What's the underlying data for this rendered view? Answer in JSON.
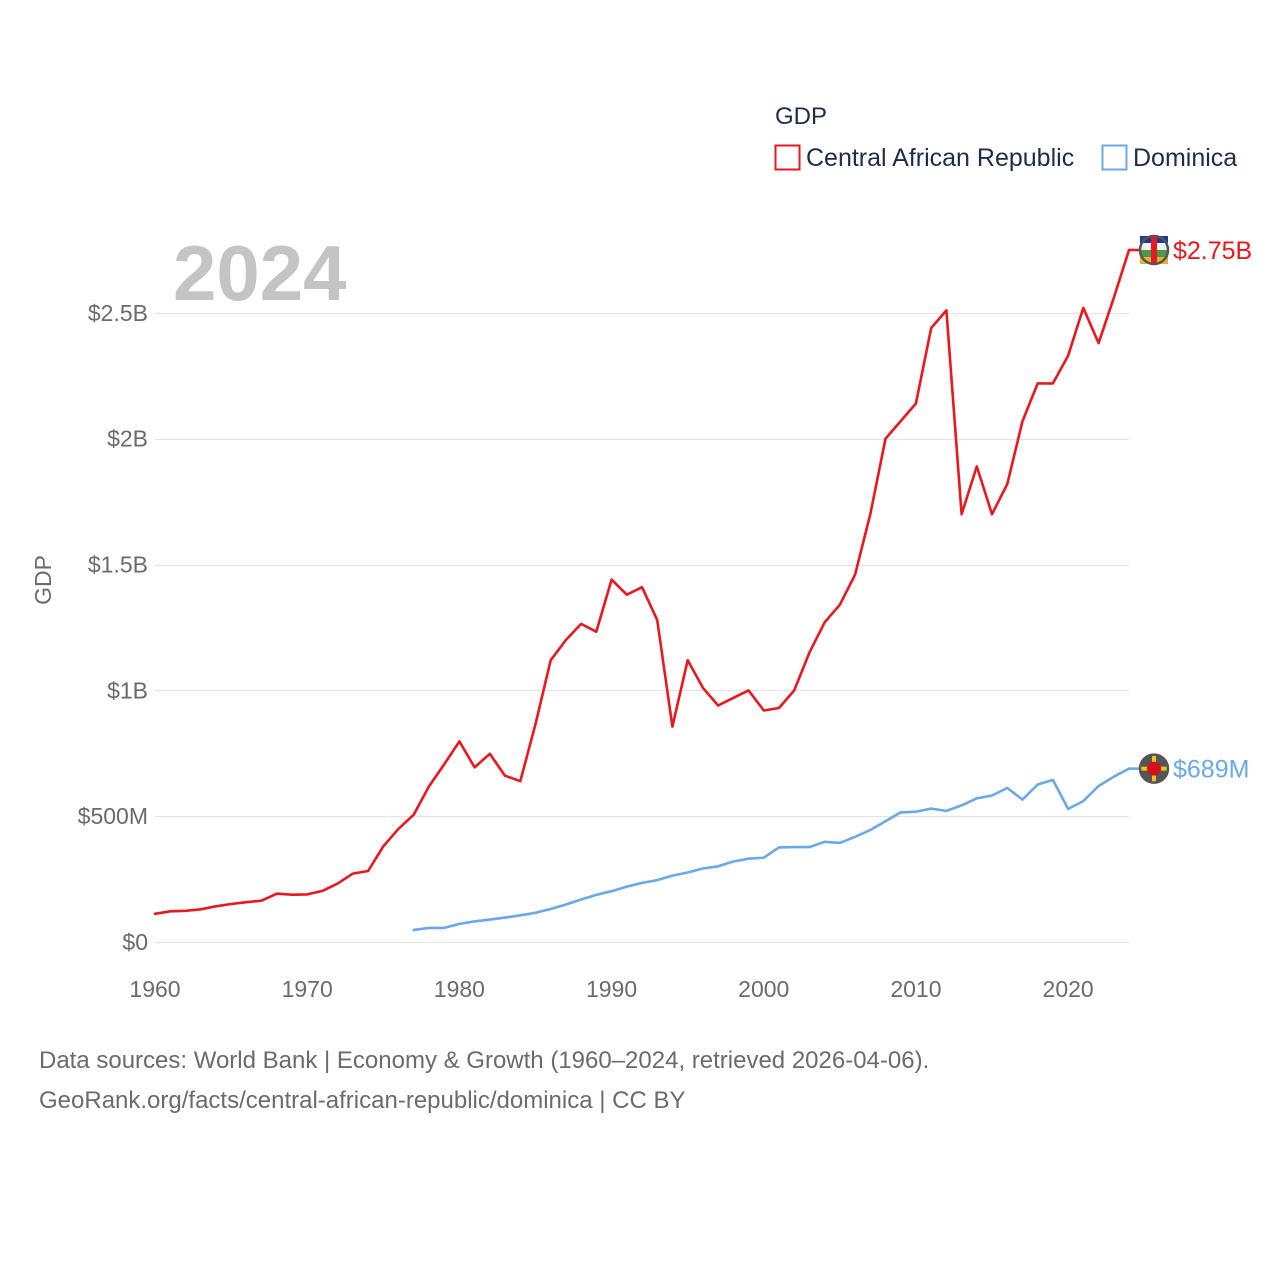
{
  "chart_data": {
    "type": "line",
    "title": "GDP",
    "current_year_label": "2024",
    "ylabel": "GDP",
    "xlabel": "",
    "xlim": [
      1960,
      2024
    ],
    "ylim": [
      0,
      2800000000
    ],
    "x_ticks": [
      {
        "value": 1960,
        "label": "1960"
      },
      {
        "value": 1970,
        "label": "1970"
      },
      {
        "value": 1980,
        "label": "1980"
      },
      {
        "value": 1990,
        "label": "1990"
      },
      {
        "value": 2000,
        "label": "2000"
      },
      {
        "value": 2010,
        "label": "2010"
      },
      {
        "value": 2020,
        "label": "2020"
      }
    ],
    "y_ticks": [
      {
        "value": 0,
        "label": "$0"
      },
      {
        "value": 500000000,
        "label": "$500M"
      },
      {
        "value": 1000000000,
        "label": "$1B"
      },
      {
        "value": 1500000000,
        "label": "$1.5B"
      },
      {
        "value": 2000000000,
        "label": "$2B"
      },
      {
        "value": 2500000000,
        "label": "$2.5B"
      }
    ],
    "grid": true,
    "legend": {
      "title": "GDP",
      "position": "top-right"
    },
    "series": [
      {
        "name": "Central African Republic",
        "color": "#e8191e",
        "flag_icon": "central-african-republic-flag-icon",
        "end_label": "$2.75B",
        "x": [
          1960,
          1961,
          1962,
          1963,
          1964,
          1965,
          1966,
          1967,
          1968,
          1969,
          1970,
          1971,
          1972,
          1973,
          1974,
          1975,
          1976,
          1977,
          1978,
          1979,
          1980,
          1981,
          1982,
          1983,
          1984,
          1985,
          1986,
          1987,
          1988,
          1989,
          1990,
          1991,
          1992,
          1993,
          1994,
          1995,
          1996,
          1997,
          1998,
          1999,
          2000,
          2001,
          2002,
          2003,
          2004,
          2005,
          2006,
          2007,
          2008,
          2009,
          2010,
          2011,
          2012,
          2013,
          2014,
          2015,
          2016,
          2017,
          2018,
          2019,
          2020,
          2021,
          2022,
          2023,
          2024
        ],
        "values": [
          112000000,
          122000000,
          124000000,
          130000000,
          142000000,
          151000000,
          158000000,
          164000000,
          192000000,
          188000000,
          189000000,
          203000000,
          232000000,
          272000000,
          282000000,
          380000000,
          450000000,
          506000000,
          618000000,
          706000000,
          797000000,
          694000000,
          748000000,
          661000000,
          639000000,
          866000000,
          1120000000,
          1200000000,
          1264000000,
          1233000000,
          1440000000,
          1380000000,
          1410000000,
          1280000000,
          856000000,
          1120000000,
          1010000000,
          940000000,
          970000000,
          1000000000,
          920000000,
          930000000,
          1000000000,
          1150000000,
          1270000000,
          1340000000,
          1460000000,
          1700000000,
          2000000000,
          2070000000,
          2140000000,
          2440000000,
          2510000000,
          1700000000,
          1890000000,
          1700000000,
          1820000000,
          2070000000,
          2220000000,
          2220000000,
          2330000000,
          2520000000,
          2380000000,
          2560000000,
          2750000000
        ]
      },
      {
        "name": "Dominica",
        "color": "#6aa9e6",
        "flag_icon": "dominica-flag-icon",
        "end_label": "$689M",
        "x": [
          1977,
          1978,
          1979,
          1980,
          1981,
          1982,
          1983,
          1984,
          1985,
          1986,
          1987,
          1988,
          1989,
          1990,
          1991,
          1992,
          1993,
          1994,
          1995,
          1996,
          1997,
          1998,
          1999,
          2000,
          2001,
          2002,
          2003,
          2004,
          2005,
          2006,
          2007,
          2008,
          2009,
          2010,
          2011,
          2012,
          2013,
          2014,
          2015,
          2016,
          2017,
          2018,
          2019,
          2020,
          2021,
          2022,
          2023,
          2024
        ],
        "values": [
          48000000,
          56000000,
          56000000,
          72000000,
          82000000,
          89000000,
          97000000,
          106000000,
          116000000,
          131000000,
          149000000,
          169000000,
          187000000,
          202000000,
          220000000,
          235000000,
          246000000,
          264000000,
          276000000,
          292000000,
          301000000,
          320000000,
          331000000,
          335000000,
          376000000,
          377000000,
          377000000,
          398000000,
          394000000,
          418000000,
          445000000,
          480000000,
          515000000,
          518000000,
          530000000,
          521000000,
          543000000,
          571000000,
          582000000,
          612000000,
          566000000,
          626000000,
          644000000,
          529000000,
          560000000,
          620000000,
          657000000,
          689000000
        ]
      }
    ]
  },
  "footer": {
    "line1": "Data sources: World Bank | Economy & Growth (1960–2024, retrieved 2026-04-06).",
    "line2": "GeoRank.org/facts/central-african-republic/dominica | CC BY"
  }
}
